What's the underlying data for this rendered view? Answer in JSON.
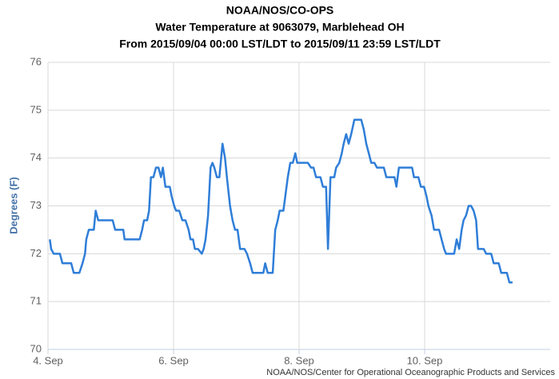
{
  "chart_data": {
    "type": "line",
    "title": "NOAA/NOS/CO-OPS",
    "subtitle": "Water Temperature at 9063079, Marblehead OH",
    "subtitle2": "From 2015/09/04 00:00 LST/LDT to 2015/09/11 23:59 LST/LDT",
    "y_label": "Degrees (F)",
    "credit": "NOAA/NOS/Center for Operational Oceanographic Products and Services",
    "grid": true,
    "xlim": [
      4,
      12
    ],
    "xticks": [
      {
        "value": 4,
        "label": "4. Sep"
      },
      {
        "value": 6,
        "label": "6. Sep"
      },
      {
        "value": 8,
        "label": "8. Sep"
      },
      {
        "value": 10,
        "label": "10. Sep"
      }
    ],
    "ylim": [
      70,
      76
    ],
    "yticks": [
      70,
      71,
      72,
      73,
      74,
      75,
      76
    ],
    "x": [
      4.03,
      4.05,
      4.09,
      4.19,
      4.23,
      4.37,
      4.41,
      4.5,
      4.55,
      4.59,
      4.61,
      4.65,
      4.73,
      4.76,
      4.8,
      5.03,
      5.07,
      5.2,
      5.22,
      5.46,
      5.5,
      5.53,
      5.58,
      5.61,
      5.64,
      5.68,
      5.72,
      5.76,
      5.8,
      5.83,
      5.87,
      5.94,
      5.97,
      6.01,
      6.04,
      6.09,
      6.14,
      6.19,
      6.24,
      6.27,
      6.31,
      6.34,
      6.39,
      6.45,
      6.48,
      6.51,
      6.55,
      6.59,
      6.62,
      6.65,
      6.69,
      6.73,
      6.78,
      6.82,
      6.85,
      6.9,
      6.94,
      6.98,
      7.02,
      7.06,
      7.13,
      7.17,
      7.22,
      7.26,
      7.43,
      7.46,
      7.5,
      7.58,
      7.62,
      7.66,
      7.69,
      7.75,
      7.78,
      7.82,
      7.86,
      7.9,
      7.94,
      7.97,
      8.14,
      8.19,
      8.23,
      8.27,
      8.34,
      8.38,
      8.43,
      8.46,
      8.5,
      8.56,
      8.59,
      8.64,
      8.68,
      8.71,
      8.75,
      8.79,
      8.83,
      8.88,
      8.99,
      9.03,
      9.07,
      9.11,
      9.15,
      9.2,
      9.24,
      9.35,
      9.39,
      9.52,
      9.55,
      9.59,
      9.8,
      9.83,
      9.9,
      9.94,
      9.99,
      10.03,
      10.06,
      10.11,
      10.15,
      10.23,
      10.27,
      10.31,
      10.34,
      10.47,
      10.51,
      10.55,
      10.59,
      10.62,
      10.66,
      10.7,
      10.74,
      10.78,
      10.82,
      10.85,
      10.94,
      10.98,
      11.06,
      11.1,
      11.18,
      11.22,
      11.31,
      11.35,
      11.4
    ],
    "series": [
      {
        "name": "Water Temperature",
        "color": "#2f7ed8",
        "values": [
          72.3,
          72.1,
          72.0,
          72.0,
          71.8,
          71.8,
          71.6,
          71.6,
          71.8,
          72.0,
          72.3,
          72.5,
          72.5,
          72.9,
          72.7,
          72.7,
          72.5,
          72.5,
          72.3,
          72.3,
          72.5,
          72.7,
          72.7,
          72.9,
          73.6,
          73.6,
          73.8,
          73.8,
          73.6,
          73.8,
          73.4,
          73.4,
          73.2,
          73.0,
          72.9,
          72.9,
          72.7,
          72.7,
          72.5,
          72.3,
          72.3,
          72.1,
          72.1,
          72.0,
          72.1,
          72.3,
          72.8,
          73.8,
          73.9,
          73.8,
          73.6,
          73.6,
          74.3,
          74.0,
          73.6,
          73.0,
          72.7,
          72.5,
          72.5,
          72.1,
          72.1,
          72.0,
          71.8,
          71.6,
          71.6,
          71.8,
          71.6,
          71.6,
          72.5,
          72.7,
          72.9,
          72.9,
          73.2,
          73.6,
          73.9,
          73.9,
          74.1,
          73.9,
          73.9,
          73.8,
          73.8,
          73.6,
          73.6,
          73.4,
          73.4,
          72.1,
          73.6,
          73.6,
          73.8,
          73.9,
          74.1,
          74.3,
          74.5,
          74.3,
          74.5,
          74.8,
          74.8,
          74.6,
          74.3,
          74.1,
          73.9,
          73.9,
          73.8,
          73.8,
          73.6,
          73.6,
          73.4,
          73.8,
          73.8,
          73.6,
          73.6,
          73.4,
          73.4,
          73.2,
          73.0,
          72.8,
          72.5,
          72.5,
          72.3,
          72.1,
          72.0,
          72.0,
          72.3,
          72.1,
          72.5,
          72.7,
          72.8,
          73.0,
          73.0,
          72.9,
          72.7,
          72.1,
          72.1,
          72.0,
          72.0,
          71.8,
          71.8,
          71.6,
          71.6,
          71.4,
          71.4
        ]
      }
    ]
  }
}
